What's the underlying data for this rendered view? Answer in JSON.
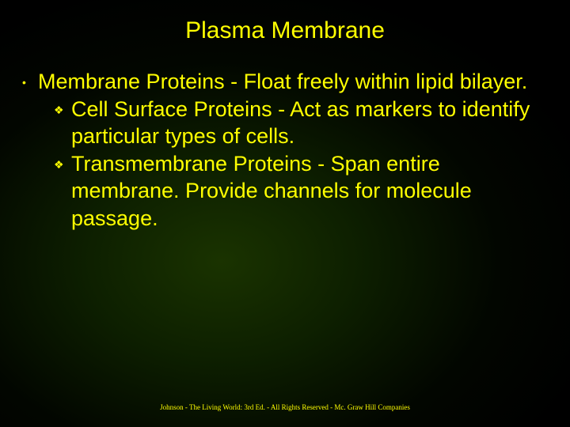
{
  "colors": {
    "text": "#ffff00",
    "bg_center": "#1a3300",
    "bg_edge": "#000000"
  },
  "typography": {
    "title_fontsize": 30,
    "body_fontsize": 27,
    "footer_fontsize": 9,
    "title_family": "Arial",
    "footer_family": "Times New Roman"
  },
  "title": "Plasma Membrane",
  "bullets": [
    {
      "text": "Membrane Proteins - Float freely within lipid bilayer.",
      "children": [
        {
          "text": "Cell Surface Proteins - Act as markers to identify particular types of cells."
        },
        {
          "text": "Transmembrane Proteins - Span entire membrane. Provide channels for molecule passage."
        }
      ]
    }
  ],
  "footer": "Johnson - The Living World: 3rd Ed. - All Rights Reserved - Mc. Graw Hill Companies",
  "bullet_glyphs": {
    "level1": "•",
    "level2": "❖"
  }
}
